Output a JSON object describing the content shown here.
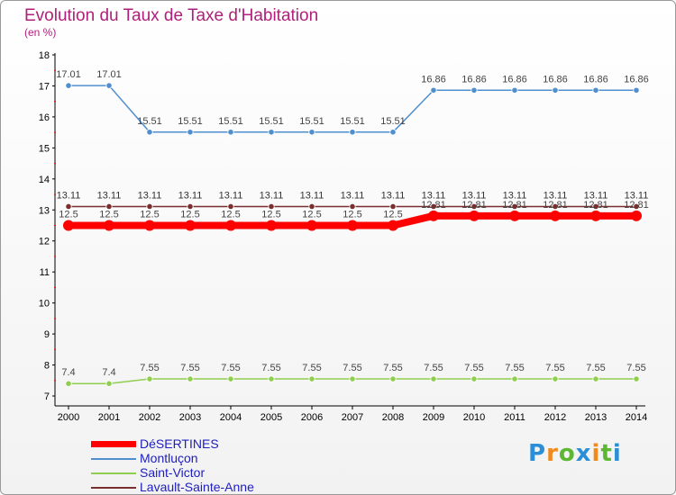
{
  "title": "Evolution du Taux de Taxe d'Habitation",
  "subtitle": "(en %)",
  "logo": {
    "p": "P",
    "r": "r",
    "o": "o",
    "x": "x",
    "i": "i",
    "t": "t",
    "i2": "i",
    "colors": {
      "blue": "#2a8fd6",
      "orange": "#f08a1c",
      "green": "#5cb832"
    }
  },
  "chart_data": {
    "type": "line",
    "x": [
      2000,
      2001,
      2002,
      2003,
      2004,
      2005,
      2006,
      2007,
      2008,
      2009,
      2010,
      2011,
      2012,
      2013,
      2014
    ],
    "ylim": [
      7,
      18
    ],
    "yticks": [
      7,
      8,
      9,
      10,
      11,
      12,
      13,
      14,
      15,
      16,
      17,
      18
    ],
    "grid": false,
    "legend_position": "bottom-left",
    "series": [
      {
        "name": "DéSERTINES",
        "color": "#ff0000",
        "thick": true,
        "values": [
          12.5,
          12.5,
          12.5,
          12.5,
          12.5,
          12.5,
          12.5,
          12.5,
          12.5,
          12.81,
          12.81,
          12.81,
          12.81,
          12.81,
          12.81
        ],
        "labels": [
          "12.5",
          "12.5",
          "12.5",
          "12.5",
          "12.5",
          "12.5",
          "12.5",
          "12.5",
          "12.5",
          "12.81",
          "12.81",
          "12.81",
          "12.81",
          "12.81",
          "12.81"
        ]
      },
      {
        "name": "Montluçon",
        "color": "#4f8fce",
        "thick": false,
        "values": [
          17.01,
          17.01,
          15.51,
          15.51,
          15.51,
          15.51,
          15.51,
          15.51,
          15.51,
          16.86,
          16.86,
          16.86,
          16.86,
          16.86,
          16.86
        ],
        "labels": [
          "17.01",
          "17.01",
          "15.51",
          "15.51",
          "15.51",
          "15.51",
          "15.51",
          "15.51",
          "15.51",
          "16.86",
          "16.86",
          "16.86",
          "16.86",
          "16.86",
          "16.86"
        ]
      },
      {
        "name": "Saint-Victor",
        "color": "#8fce4f",
        "thick": false,
        "values": [
          7.4,
          7.4,
          7.55,
          7.55,
          7.55,
          7.55,
          7.55,
          7.55,
          7.55,
          7.55,
          7.55,
          7.55,
          7.55,
          7.55,
          7.55
        ],
        "labels": [
          "7.4",
          "7.4",
          "7.55",
          "7.55",
          "7.55",
          "7.55",
          "7.55",
          "7.55",
          "7.55",
          "7.55",
          "7.55",
          "7.55",
          "7.55",
          "7.55",
          "7.55"
        ]
      },
      {
        "name": "Lavault-Sainte-Anne",
        "color": "#7a2f2f",
        "thick": false,
        "values": [
          13.11,
          13.11,
          13.11,
          13.11,
          13.11,
          13.11,
          13.11,
          13.11,
          13.11,
          13.11,
          13.11,
          13.11,
          13.11,
          13.11,
          13.11
        ],
        "labels": [
          "13.11",
          "13.11",
          "13.11",
          "13.11",
          "13.11",
          "13.11",
          "13.11",
          "13.11",
          "13.11",
          "13.11",
          "13.11",
          "13.11",
          "13.11",
          "13.11",
          "13.11"
        ]
      }
    ]
  }
}
